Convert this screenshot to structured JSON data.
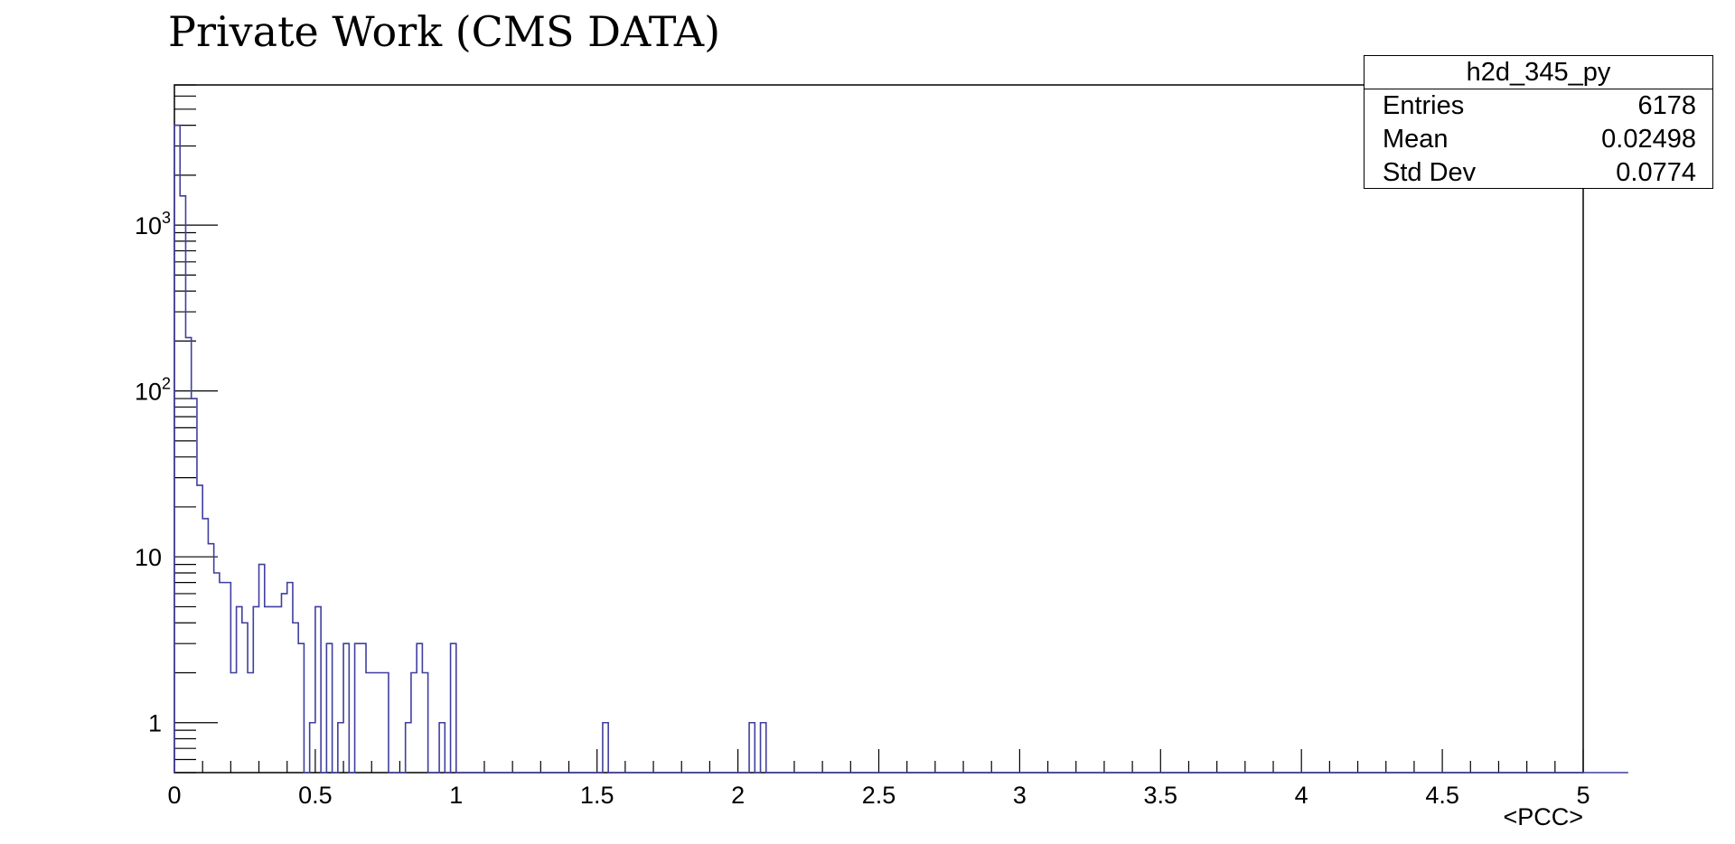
{
  "chart_data": {
    "type": "histogram",
    "title": "Private Work (CMS DATA)",
    "xlabel": "<PCC>",
    "ylabel": "",
    "xlim": [
      0,
      5
    ],
    "ylim": [
      0.5,
      7000
    ],
    "log_y": true,
    "bin_width": 0.02,
    "line_color": "#3f3fa0",
    "x_ticks": [
      "0",
      "0.5",
      "1",
      "1.5",
      "2",
      "2.5",
      "3",
      "3.5",
      "4",
      "4.5",
      "5"
    ],
    "y_ticks": [
      {
        "base": "1",
        "exp": ""
      },
      {
        "base": "10",
        "exp": ""
      },
      {
        "base": "10",
        "exp": "2"
      },
      {
        "base": "10",
        "exp": "3"
      }
    ],
    "bin_values": [
      4000,
      1500,
      210,
      90,
      27,
      17,
      12,
      8,
      7,
      7,
      2,
      5,
      4,
      2,
      5,
      9,
      5,
      5,
      5,
      6,
      7,
      4,
      3,
      0,
      1,
      5,
      0,
      3,
      0,
      1,
      3,
      0,
      3,
      3,
      2,
      2,
      2,
      2,
      0,
      0,
      0,
      1,
      2,
      3,
      2,
      0,
      0,
      1,
      0,
      3,
      0,
      0,
      0,
      0,
      0,
      0,
      0,
      0,
      0,
      0,
      0,
      0,
      0,
      0,
      0,
      0,
      0,
      0,
      0,
      0,
      0,
      0,
      0,
      0,
      0,
      0,
      1,
      0,
      0,
      0,
      0,
      0,
      0,
      0,
      0,
      0,
      0,
      0,
      0,
      0,
      0,
      0,
      0,
      0,
      0,
      0,
      0,
      0,
      0,
      0,
      0,
      0,
      1,
      0,
      1,
      0,
      0,
      0,
      0,
      0,
      0,
      0,
      0,
      0,
      0,
      0,
      0,
      0,
      0,
      0,
      0,
      0,
      0,
      0,
      0,
      0,
      0,
      0,
      0,
      0,
      0,
      0,
      0,
      0,
      0,
      0,
      0,
      0,
      0,
      0,
      0,
      0,
      0,
      0,
      0,
      0,
      0,
      0,
      0,
      0,
      0,
      0,
      0,
      0,
      0,
      0,
      0,
      0,
      0,
      0,
      0,
      0,
      0,
      0,
      0,
      0,
      0,
      0,
      0,
      0,
      0,
      0,
      0,
      0,
      0,
      0,
      0,
      0,
      0,
      0,
      0,
      0,
      0,
      0,
      0,
      0,
      0,
      0,
      0,
      0,
      0,
      0,
      0,
      0,
      0,
      0,
      0,
      0,
      0,
      0,
      0,
      0,
      0,
      0,
      0,
      0,
      0,
      0,
      0,
      0,
      0,
      0,
      0,
      0,
      0,
      0,
      0,
      0,
      0,
      0,
      0,
      0,
      0,
      0,
      0,
      0,
      0,
      0,
      0,
      0,
      0,
      0,
      0,
      0,
      0,
      0,
      0,
      0,
      0,
      0,
      0,
      0,
      0,
      0,
      0,
      0,
      0,
      0,
      0,
      0,
      0,
      0,
      0,
      0,
      0,
      0,
      0,
      0
    ]
  },
  "stats": {
    "name": "h2d_345_py",
    "rows": [
      {
        "label": "Entries",
        "value": "6178"
      },
      {
        "label": "Mean",
        "value": "0.02498"
      },
      {
        "label": "Std Dev",
        "value": "0.0774"
      }
    ]
  }
}
